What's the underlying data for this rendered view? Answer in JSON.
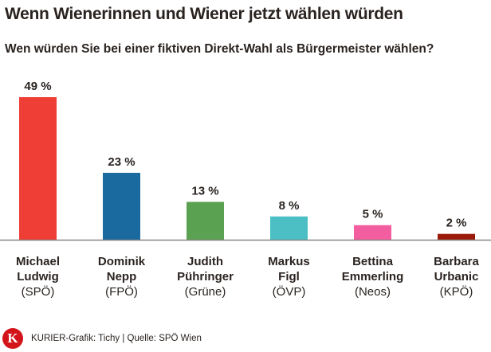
{
  "chart_data": {
    "type": "bar",
    "title": "Wenn Wienerinnen und Wiener jetzt wählen würden",
    "subtitle": "Wen würden Sie bei einer fiktiven Direkt-Wahl als Bürgermeister wählen?",
    "categories": [
      {
        "name_line1": "Michael",
        "name_line2": "Ludwig",
        "party": "(SPÖ)"
      },
      {
        "name_line1": "Dominik",
        "name_line2": "Nepp",
        "party": "(FPÖ)"
      },
      {
        "name_line1": "Judith",
        "name_line2": "Pühringer",
        "party": "(Grüne)"
      },
      {
        "name_line1": "Markus",
        "name_line2": "Figl",
        "party": "(ÖVP)"
      },
      {
        "name_line1": "Bettina",
        "name_line2": "Emmerling",
        "party": "(Neos)"
      },
      {
        "name_line1": "Barbara",
        "name_line2": "Urbanic",
        "party": "(KPÖ)"
      }
    ],
    "values": [
      49,
      23,
      13,
      8,
      5,
      2
    ],
    "value_labels": [
      "49 %",
      "23 %",
      "13 %",
      "8 %",
      "5 %",
      "2 %"
    ],
    "colors": [
      "#ef3e36",
      "#1a6aa0",
      "#5aa252",
      "#4bbfc4",
      "#f25e9f",
      "#9b1b0a"
    ],
    "ylim": [
      0,
      50
    ],
    "grid": false
  },
  "footer": {
    "logo": "K",
    "credit": "KURIER-Grafik: Tichy | Quelle: SPÖ Wien"
  }
}
